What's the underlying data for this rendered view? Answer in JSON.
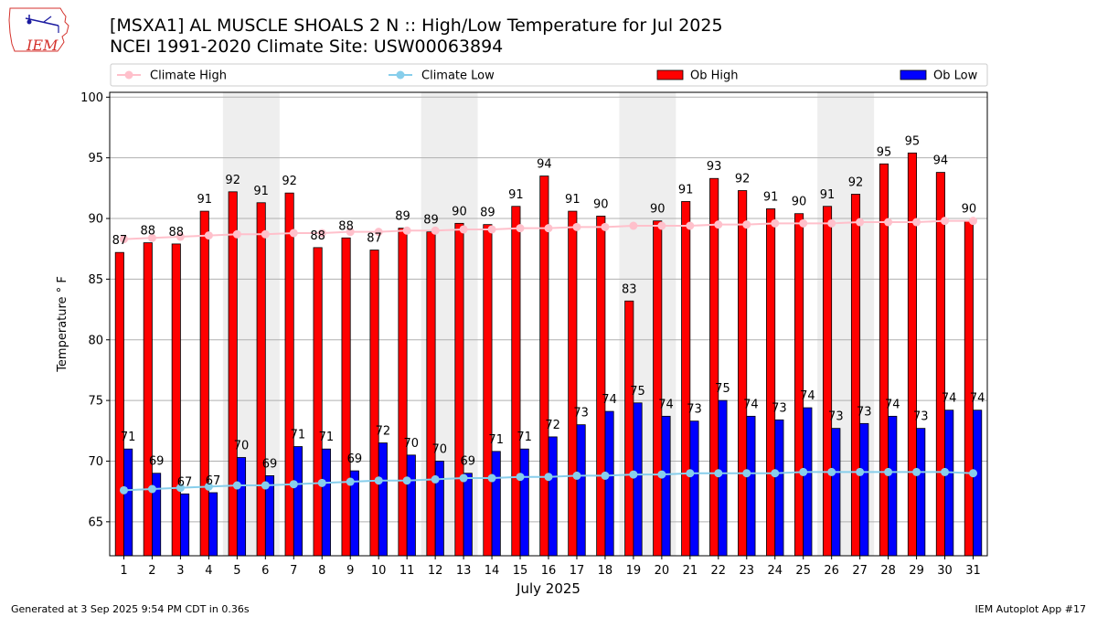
{
  "header": {
    "title_line1": "[MSXA1] AL MUSCLE SHOALS 2 N :: High/Low Temperature for Jul 2025",
    "title_line2": "NCEI 1991-2020 Climate Site: USW00063894",
    "logo_text": "IEM",
    "logo_icon": "iowa-state-outline-icon"
  },
  "footer": {
    "left": "Generated at 3 Sep 2025 9:54 PM CDT in 0.36s",
    "right": "IEM Autoplot App #17"
  },
  "chart_data": {
    "type": "bar",
    "xlabel": "July 2025",
    "ylabel": "Temperature ° F",
    "ylim": [
      62.2,
      100.4
    ],
    "yticks": [
      65,
      70,
      75,
      80,
      85,
      90,
      95,
      100
    ],
    "grid": "horizontal",
    "legend_position": "top",
    "shaded_weekends": [
      [
        5,
        6
      ],
      [
        12,
        13
      ],
      [
        19,
        20
      ],
      [
        26,
        27
      ]
    ],
    "categories": [
      "1",
      "2",
      "3",
      "4",
      "5",
      "6",
      "7",
      "8",
      "9",
      "10",
      "11",
      "12",
      "13",
      "14",
      "15",
      "16",
      "17",
      "18",
      "19",
      "20",
      "21",
      "22",
      "23",
      "24",
      "25",
      "26",
      "27",
      "28",
      "29",
      "30",
      "31"
    ],
    "series": [
      {
        "name": "Ob High",
        "kind": "bar",
        "color": "#ff0000",
        "values": [
          87.2,
          88.0,
          87.9,
          90.6,
          92.2,
          91.3,
          92.1,
          87.6,
          88.4,
          87.4,
          89.2,
          88.9,
          89.6,
          89.5,
          91.0,
          93.5,
          90.6,
          90.2,
          83.2,
          89.8,
          91.4,
          93.3,
          92.3,
          90.8,
          90.4,
          91.0,
          92.0,
          94.5,
          95.4,
          93.8,
          89.8
        ],
        "labels": [
          "87",
          "88",
          "88",
          "91",
          "92",
          "91",
          "92",
          "88",
          "88",
          "87",
          "89",
          "89",
          "90",
          "89",
          "91",
          "94",
          "91",
          "90",
          "83",
          "90",
          "91",
          "93",
          "92",
          "91",
          "90",
          "91",
          "92",
          "95",
          "95",
          "94",
          "90"
        ]
      },
      {
        "name": "Ob Low",
        "kind": "bar",
        "color": "#0000ff",
        "values": [
          71.0,
          69.0,
          67.3,
          67.4,
          70.3,
          68.8,
          71.2,
          71.0,
          69.2,
          71.5,
          70.5,
          70.0,
          69.0,
          70.8,
          71.0,
          72.0,
          73.0,
          74.1,
          74.8,
          73.7,
          73.3,
          75.0,
          73.7,
          73.4,
          74.4,
          72.7,
          73.1,
          73.7,
          72.7,
          74.2,
          74.2
        ],
        "labels": [
          "71",
          "69",
          "67",
          "67",
          "70",
          "69",
          "71",
          "71",
          "69",
          "72",
          "70",
          "70",
          "69",
          "71",
          "71",
          "72",
          "73",
          "74",
          "75",
          "74",
          "73",
          "75",
          "74",
          "73",
          "74",
          "73",
          "73",
          "74",
          "73",
          "74",
          "74"
        ]
      },
      {
        "name": "Climate High",
        "kind": "line",
        "color": "#ffc0cb",
        "values": [
          88.3,
          88.4,
          88.5,
          88.6,
          88.7,
          88.7,
          88.8,
          88.8,
          88.9,
          88.9,
          89.0,
          89.0,
          89.1,
          89.1,
          89.2,
          89.2,
          89.3,
          89.3,
          89.4,
          89.4,
          89.4,
          89.5,
          89.5,
          89.6,
          89.6,
          89.6,
          89.7,
          89.7,
          89.7,
          89.8,
          89.8
        ]
      },
      {
        "name": "Climate Low",
        "kind": "line",
        "color": "#87ceeb",
        "values": [
          67.6,
          67.7,
          67.8,
          67.9,
          68.0,
          68.0,
          68.1,
          68.2,
          68.3,
          68.4,
          68.4,
          68.5,
          68.6,
          68.6,
          68.7,
          68.7,
          68.8,
          68.8,
          68.9,
          68.9,
          69.0,
          69.0,
          69.0,
          69.0,
          69.1,
          69.1,
          69.1,
          69.1,
          69.1,
          69.1,
          69.0
        ]
      }
    ]
  }
}
